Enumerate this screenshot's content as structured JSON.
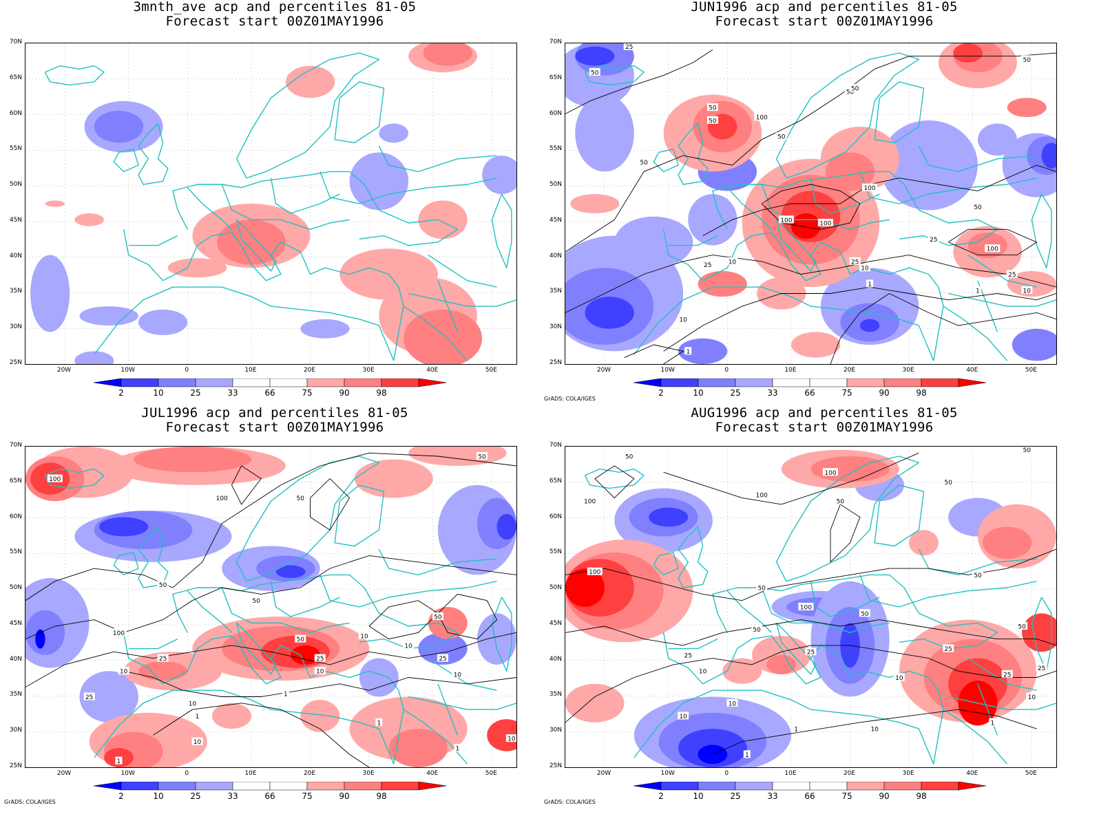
{
  "colors": {
    "blue_deep": "#0000ff",
    "blue_mid": "#4040ff",
    "blue_light": "#8080ff",
    "blue_pale": "#a8a8ff",
    "red_pale": "#ffa8a8",
    "red_light": "#ff8080",
    "red_mid": "#ff4040",
    "red_deep": "#ff0000",
    "coast": "#20c0c0",
    "contour": "#000000"
  },
  "credit": "GrADS: COLA/IGES",
  "legend": {
    "labels": [
      "2",
      "10",
      "25",
      "33",
      "66",
      "75",
      "90",
      "98"
    ]
  },
  "axes": {
    "lat_labels": [
      "70N",
      "65N",
      "60N",
      "55N",
      "50N",
      "45N",
      "40N",
      "35N",
      "30N",
      "25N"
    ],
    "lon_labels": [
      "20W",
      "10W",
      "0",
      "10E",
      "20E",
      "30E",
      "40E",
      "50E"
    ]
  },
  "panels": [
    {
      "title_line1": "3mnth_ave acp and percentiles 81-05",
      "title_line2": "Forecast start 00Z01MAY1996",
      "show_credit": false,
      "contour_labels": []
    },
    {
      "title_line1": "JUN1996 acp and percentiles 81-05",
      "title_line2": "Forecast start 00Z01MAY1996",
      "show_credit": true,
      "contour_labels": [
        "25",
        "50",
        "50",
        "50",
        "50",
        "50",
        "100",
        "50",
        "50",
        "100",
        "100",
        "100",
        "50",
        "50",
        "25",
        "100",
        "25",
        "10",
        "10",
        "25",
        "10",
        "1",
        "1",
        "10",
        "25",
        "1"
      ]
    },
    {
      "title_line1": "JUL1996 acp and percentiles 81-05",
      "title_line2": "Forecast start 00Z01MAY1996",
      "show_credit": true,
      "contour_labels": [
        "100",
        "100",
        "50",
        "50",
        "50",
        "100",
        "25",
        "25",
        "10",
        "50",
        "25",
        "10",
        "10",
        "50",
        "10",
        "10",
        "25",
        "10",
        "1",
        "10",
        "1",
        "1",
        "1",
        "1",
        "10",
        "50"
      ]
    },
    {
      "title_line1": "AUG1996 acp and percentiles 81-05",
      "title_line2": "Forecast start 00Z01MAY1996",
      "show_credit": true,
      "contour_labels": [
        "50",
        "100",
        "100",
        "100",
        "50",
        "50",
        "100",
        "50",
        "50",
        "100",
        "50",
        "50",
        "50",
        "25",
        "25",
        "10",
        "25",
        "25",
        "10",
        "25",
        "10",
        "10",
        "10",
        "1",
        "1",
        "10",
        "1",
        "50"
      ]
    }
  ]
}
